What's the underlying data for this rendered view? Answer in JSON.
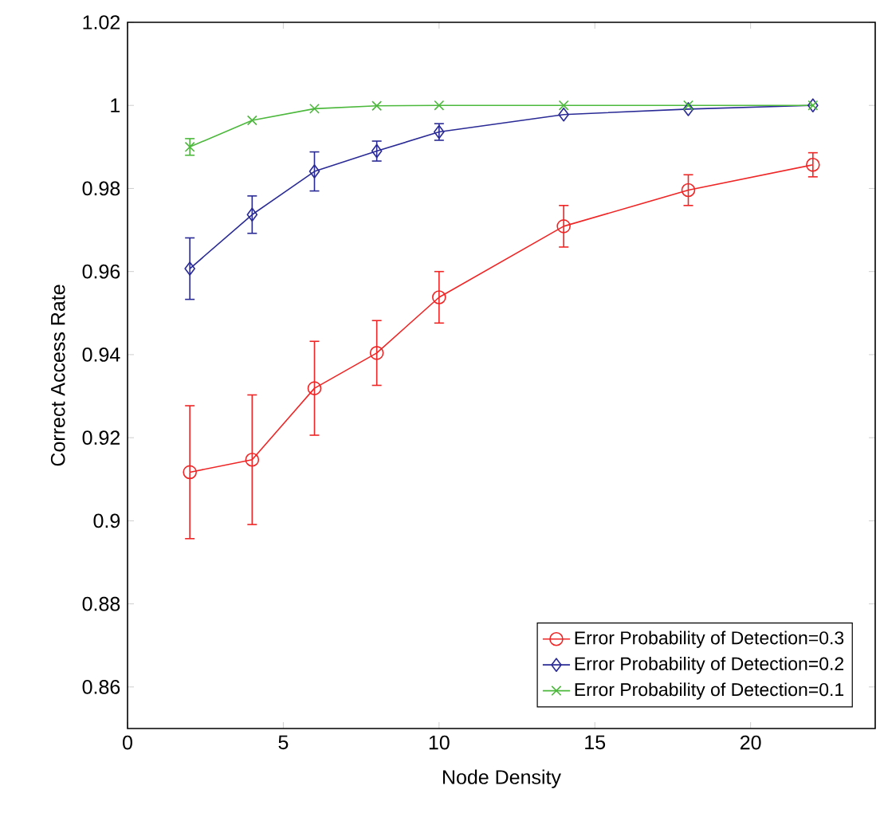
{
  "chart_data": {
    "type": "line",
    "xlabel": "Node Density",
    "ylabel": "Correct Access Rate",
    "x": [
      2,
      4,
      6,
      8,
      10,
      14,
      18,
      22
    ],
    "series": [
      {
        "name": "Error Probability of Detection=0.3",
        "color": "#f02525",
        "marker": "circle",
        "values": [
          0.9117,
          0.9147,
          0.9319,
          0.9404,
          0.9538,
          0.9709,
          0.9796,
          0.9857
        ],
        "errors": [
          0.016,
          0.0156,
          0.0113,
          0.0078,
          0.0062,
          0.005,
          0.0037,
          0.0029
        ]
      },
      {
        "name": "Error Probability of Detection=0.2",
        "color": "#2a2a96",
        "marker": "diamond",
        "values": [
          0.9607,
          0.9737,
          0.9841,
          0.989,
          0.9936,
          0.9978,
          0.9991,
          1.0
        ],
        "errors": [
          0.0074,
          0.0045,
          0.0047,
          0.0024,
          0.002,
          null,
          null,
          null
        ]
      },
      {
        "name": "Error Probability of Detection=0.1",
        "color": "#4cb83c",
        "marker": "cross",
        "values": [
          0.99,
          0.9964,
          0.9992,
          0.9999,
          1.0,
          1.0,
          1.0,
          1.0
        ],
        "errors": [
          0.002,
          null,
          null,
          null,
          null,
          null,
          null,
          null
        ]
      }
    ],
    "xlim": [
      0,
      24
    ],
    "xticks": [
      0,
      5,
      10,
      15,
      20
    ],
    "ylim": [
      0.85,
      1.02
    ],
    "yticks": [
      0.86,
      0.88,
      0.9,
      0.92,
      0.94,
      0.96,
      0.98,
      1,
      1.02
    ],
    "legend": "bottom right",
    "line_style": "solid"
  }
}
